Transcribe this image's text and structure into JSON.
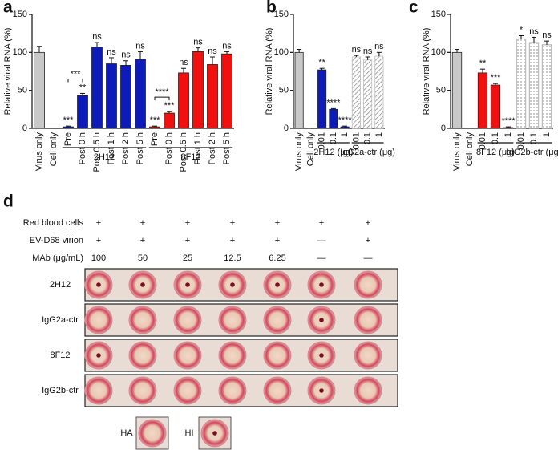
{
  "chart_data": [
    {
      "type": "bar",
      "panel_label": "a",
      "y_label": "Relative viral RNA (%)",
      "categories": [
        "Virus only",
        "Cell only",
        "Pre",
        "Post 0 h",
        "Post 0.5 h",
        "Post 1 h",
        "Post 2 h",
        "Post 5 h",
        "Pre",
        "Post 0 h",
        "Post 0.5 h",
        "Post 1 h",
        "Post 2 h",
        "Post 5 h"
      ],
      "values": [
        100,
        0,
        2,
        43,
        107,
        85,
        83,
        91,
        2,
        20,
        73,
        101,
        84,
        98
      ],
      "errors": [
        8,
        0,
        1,
        3,
        6,
        8,
        6,
        10,
        1,
        2,
        6,
        5,
        10,
        3
      ],
      "colors": [
        "#c8c8c8",
        "#c8c8c8",
        "#0d1bb8",
        "#0d1bb8",
        "#0d1bb8",
        "#0d1bb8",
        "#0d1bb8",
        "#0d1bb8",
        "#f01010",
        "#f01010",
        "#f01010",
        "#f01010",
        "#f01010",
        "#f01010"
      ],
      "patterns": [
        null,
        null,
        null,
        null,
        null,
        null,
        null,
        null,
        null,
        null,
        null,
        null,
        null,
        null
      ],
      "significance": [
        null,
        null,
        "***",
        "**",
        "ns",
        "ns",
        "ns",
        "ns",
        "***",
        "***",
        "ns",
        "ns",
        "ns",
        "ns"
      ],
      "bracket_labels": [
        "***",
        "****"
      ],
      "groups": [
        "2H12",
        "8F12"
      ],
      "ylim": [
        0,
        150
      ],
      "yticks": [
        0,
        50,
        100,
        150
      ]
    },
    {
      "type": "bar",
      "panel_label": "b",
      "y_label": "Relative viral RNA (%)",
      "categories": [
        "Virus only",
        "Cell only",
        "0.01",
        "0.1",
        "1",
        "0.01",
        "0.1",
        "1"
      ],
      "values": [
        100,
        0,
        77,
        25,
        2,
        94,
        90,
        95
      ],
      "errors": [
        4,
        0,
        2,
        1,
        1,
        2,
        4,
        5
      ],
      "colors": [
        "#c8c8c8",
        "#c8c8c8",
        "#0d1bb8",
        "#0d1bb8",
        "#0d1bb8",
        "#bbbbbb",
        "#bbbbbb",
        "#bbbbbb"
      ],
      "patterns": [
        null,
        null,
        null,
        null,
        null,
        "hatch",
        "hatch",
        "hatch"
      ],
      "significance": [
        null,
        null,
        "**",
        "****",
        "****",
        "ns",
        "ns",
        "ns"
      ],
      "groups": [
        "2H12 (μg)",
        "IgG2a-ctr (μg)"
      ],
      "ylim": [
        0,
        150
      ],
      "yticks": [
        0,
        50,
        100,
        150
      ]
    },
    {
      "type": "bar",
      "panel_label": "c",
      "y_label": "Relative viral RNA (%)",
      "categories": [
        "Virus only",
        "Cell only",
        "0.01",
        "0.1",
        "1",
        "0.01",
        "0.1",
        "1"
      ],
      "values": [
        100,
        0,
        73,
        57,
        1,
        118,
        113,
        110
      ],
      "errors": [
        4,
        0,
        5,
        2,
        1,
        4,
        7,
        5
      ],
      "colors": [
        "#c8c8c8",
        "#c8c8c8",
        "#f01010",
        "#f01010",
        "#f01010",
        "#999999",
        "#999999",
        "#999999"
      ],
      "patterns": [
        null,
        null,
        null,
        null,
        null,
        "dots",
        "dots",
        "dots"
      ],
      "significance": [
        null,
        null,
        "**",
        "***",
        "****",
        "*",
        "ns",
        "ns"
      ],
      "groups": [
        "8F12 (μg)",
        "IgG2b-ctr (μg)"
      ],
      "ylim": [
        0,
        150
      ],
      "yticks": [
        0,
        50,
        100,
        150
      ]
    }
  ],
  "panel_d": {
    "panel_label": "d",
    "header_rows": [
      {
        "label": "Red blood cells",
        "cells": [
          "+",
          "+",
          "+",
          "+",
          "+",
          "+",
          "+"
        ]
      },
      {
        "label": "EV-D68 virion",
        "cells": [
          "+",
          "+",
          "+",
          "+",
          "+",
          "—",
          "+"
        ]
      },
      {
        "label": "MAb (μg/mL)",
        "cells": [
          "100",
          "50",
          "25",
          "12.5",
          "6.25",
          "—",
          "—"
        ]
      }
    ],
    "well_rows": [
      {
        "label": "2H12",
        "wells": [
          "HI",
          "HI",
          "HI",
          "HI",
          "HI",
          "HI",
          "HA"
        ]
      },
      {
        "label": "IgG2a-ctr",
        "wells": [
          "HA",
          "HA",
          "HA",
          "HA",
          "HA",
          "HI",
          "HA"
        ]
      },
      {
        "label": "8F12",
        "wells": [
          "HI",
          "HA",
          "HA",
          "HA",
          "HA",
          "HI",
          "HA"
        ]
      },
      {
        "label": "IgG2b-ctr",
        "wells": [
          "HA",
          "HA",
          "HA",
          "HA",
          "HA",
          "HI",
          "HA"
        ]
      }
    ],
    "legend": [
      {
        "label": "HA",
        "well": "HA"
      },
      {
        "label": "HI",
        "well": "HI"
      }
    ]
  }
}
